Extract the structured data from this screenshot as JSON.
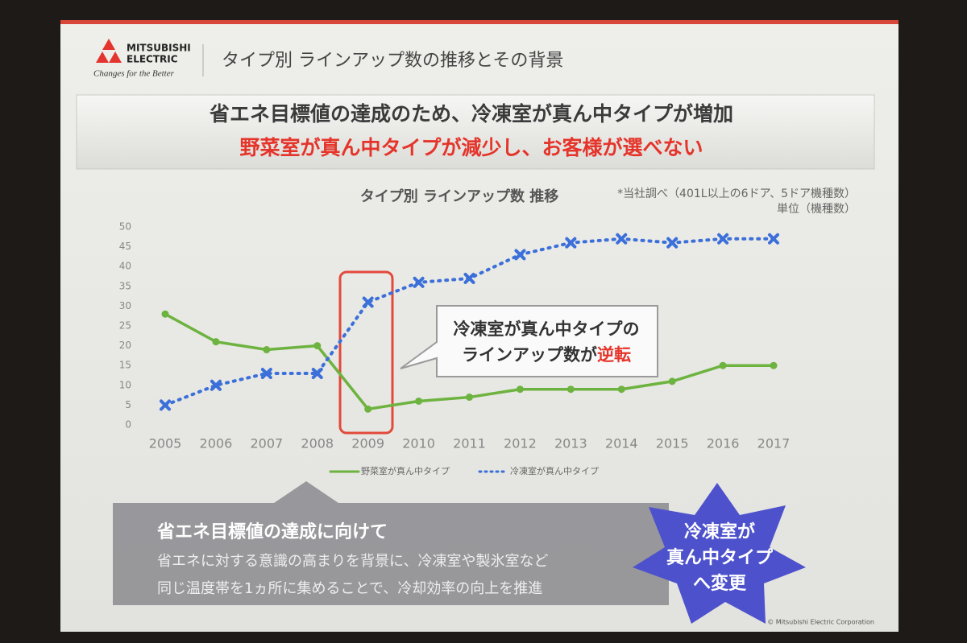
{
  "slide": {
    "logo": {
      "line1": "MITSUBISHI",
      "line2": "ELECTRIC",
      "tagline": "Changes for the Better"
    },
    "title": "タイプ別 ラインアップ数の推移とその背景",
    "banner": {
      "line1": "省エネ目標値の達成のため、冷凍室が真ん中タイプが増加",
      "line2": "野菜室が真ん中タイプが減少し、お客様が選べない"
    },
    "bottom": {
      "heading": "省エネ目標値の達成に向けて",
      "line1": "省エネに対する意識の高まりを背景に、冷凍室や製氷室など",
      "line2": "同じ温度帯を1ヵ所に集めることで、冷却効率の向上を推進"
    },
    "star": {
      "line1": "冷凍室が",
      "line2": "真ん中タイプ",
      "line3": "へ変更"
    },
    "copyright": "© Mitsubishi Electric Corporation"
  },
  "chart_data": {
    "type": "line",
    "title": "タイプ別 ラインアップ数 推移",
    "note": "*当社調べ（401L以上の6ドア、5ドア機種数）",
    "unit": "単位（機種数）",
    "annotation": {
      "line1": "冷凍室が真ん中タイプの",
      "line2a": "ラインアップ数が",
      "line2b": "逆転"
    },
    "categories": [
      "2005",
      "2006",
      "2007",
      "2008",
      "2009",
      "2010",
      "2011",
      "2012",
      "2013",
      "2014",
      "2015",
      "2016",
      "2017"
    ],
    "series": [
      {
        "name": "野菜室が真ん中タイプ",
        "color": "#6db33f",
        "values": [
          28,
          21,
          19,
          20,
          4,
          6,
          7,
          9,
          9,
          9,
          11,
          15,
          15
        ]
      },
      {
        "name": "冷凍室が真ん中タイプ",
        "color": "#3b6fd9",
        "values": [
          5,
          10,
          13,
          13,
          31,
          36,
          37,
          43,
          46,
          47,
          46,
          47,
          47
        ]
      }
    ],
    "ylim": [
      0,
      50
    ],
    "yticks": [
      0,
      5,
      10,
      15,
      20,
      25,
      30,
      35,
      40,
      45,
      50
    ],
    "grid": false,
    "legend": "bottom"
  }
}
